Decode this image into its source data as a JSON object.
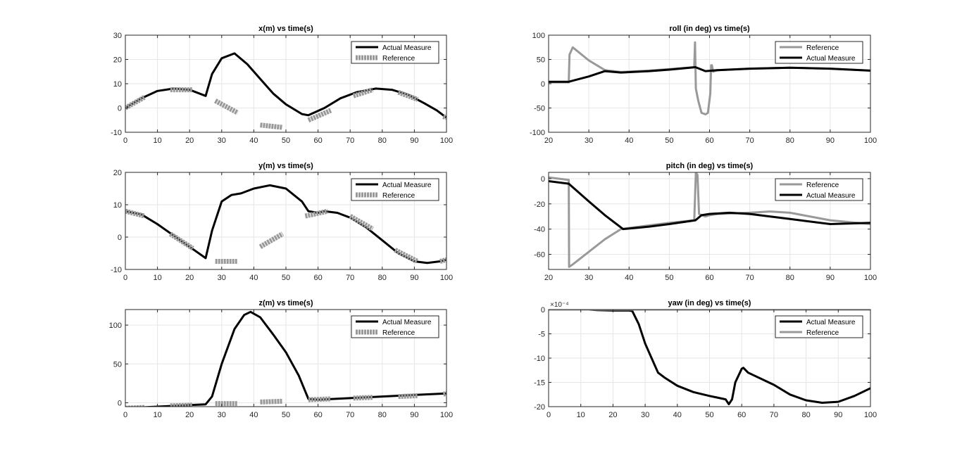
{
  "chart_data": [
    {
      "type": "line",
      "title": "x(m) vs time(s)",
      "xlim": [
        0,
        100
      ],
      "ylim": [
        -10,
        30
      ],
      "xticks": [
        0,
        10,
        20,
        30,
        40,
        50,
        60,
        70,
        80,
        90,
        100
      ],
      "yticks": [
        -10,
        0,
        10,
        20,
        30
      ],
      "grid": true,
      "legend_position": "top-right",
      "series": [
        {
          "name": "Actual Measure",
          "style": "solid-thick",
          "color": "#000000",
          "x": [
            0,
            5,
            10,
            15,
            20,
            25,
            27,
            30,
            34,
            38,
            42,
            46,
            50,
            55,
            57,
            62,
            67,
            72,
            78,
            83,
            88,
            93,
            97,
            100
          ],
          "y": [
            0,
            4,
            7,
            8,
            7.5,
            5,
            14,
            20.5,
            22.5,
            18,
            12,
            6,
            1.5,
            -2.5,
            -3,
            0,
            4,
            6.5,
            8,
            7.5,
            5.5,
            2,
            -1,
            -4
          ]
        },
        {
          "name": "Reference",
          "style": "dashed-wide",
          "color": "#999999",
          "segments": [
            {
              "x": [
                0,
                6
              ],
              "y": [
                0,
                4.5
              ]
            },
            {
              "x": [
                14,
                21
              ],
              "y": [
                7.5,
                7.5
              ]
            },
            {
              "x": [
                28,
                35
              ],
              "y": [
                3,
                -2
              ]
            },
            {
              "x": [
                42,
                49
              ],
              "y": [
                -7,
                -8
              ]
            },
            {
              "x": [
                57,
                64
              ],
              "y": [
                -5,
                -1
              ]
            },
            {
              "x": [
                71,
                77
              ],
              "y": [
                5,
                7.5
              ]
            },
            {
              "x": [
                85,
                91
              ],
              "y": [
                6.5,
                3.5
              ]
            },
            {
              "x": [
                99,
                100
              ],
              "y": [
                -3.5,
                -4
              ]
            }
          ]
        }
      ]
    },
    {
      "type": "line",
      "title": "roll (in deg) vs time(s)",
      "xlim": [
        20,
        100
      ],
      "ylim": [
        -100,
        100
      ],
      "xticks": [
        20,
        30,
        40,
        50,
        60,
        70,
        80,
        90,
        100
      ],
      "yticks": [
        -100,
        -50,
        0,
        50,
        100
      ],
      "grid": true,
      "legend_position": "top-right",
      "series": [
        {
          "name": "Reference",
          "style": "solid-thick",
          "color": "#999999",
          "x": [
            20,
            25,
            25.2,
            26,
            30,
            34,
            38,
            45,
            50,
            56.2,
            56.4,
            56.6,
            57.2,
            58,
            59,
            59.6,
            60.2,
            60.4,
            60.6,
            60.9,
            62,
            70,
            80,
            90,
            100
          ],
          "y": [
            3,
            3,
            60,
            75,
            48,
            28,
            24,
            27,
            30,
            34,
            85,
            -10,
            -35,
            -60,
            -63,
            -60,
            -20,
            38,
            38,
            25,
            28,
            31,
            33,
            31,
            27
          ]
        },
        {
          "name": "Actual Measure",
          "style": "solid-thick",
          "color": "#000000",
          "x": [
            20,
            25,
            30,
            34,
            38,
            45,
            50,
            56.5,
            59,
            62,
            70,
            80,
            90,
            100
          ],
          "y": [
            4,
            4,
            15,
            26,
            23,
            26,
            29,
            34,
            26,
            28,
            31,
            33,
            31,
            27
          ]
        }
      ]
    },
    {
      "type": "line",
      "title": "y(m) vs time(s)",
      "xlim": [
        0,
        100
      ],
      "ylim": [
        -10,
        20
      ],
      "xticks": [
        0,
        10,
        20,
        30,
        40,
        50,
        60,
        70,
        80,
        90,
        100
      ],
      "yticks": [
        -10,
        0,
        10,
        20
      ],
      "grid": true,
      "legend_position": "top-right",
      "series": [
        {
          "name": "Actual Measure",
          "style": "solid-thick",
          "color": "#000000",
          "x": [
            0,
            5,
            10,
            15,
            20,
            25,
            27,
            30,
            33,
            36,
            40,
            45,
            50,
            55,
            57,
            60,
            62,
            66,
            70,
            75,
            80,
            85,
            90,
            94,
            98,
            100
          ],
          "y": [
            8,
            7,
            4,
            0.5,
            -3,
            -6.5,
            2,
            11,
            13,
            13.5,
            15,
            16,
            15,
            11,
            8,
            7.5,
            8,
            7.5,
            6,
            3,
            -1,
            -5,
            -7.5,
            -8,
            -7.5,
            -7
          ]
        },
        {
          "name": "Reference",
          "style": "dashed-wide",
          "color": "#999999",
          "segments": [
            {
              "x": [
                0,
                6
              ],
              "y": [
                8,
                6.5
              ]
            },
            {
              "x": [
                14,
                21
              ],
              "y": [
                1,
                -3.5
              ]
            },
            {
              "x": [
                28,
                35
              ],
              "y": [
                -7.5,
                -7.5
              ]
            },
            {
              "x": [
                42,
                49
              ],
              "y": [
                -3,
                1
              ]
            },
            {
              "x": [
                56,
                63
              ],
              "y": [
                6.5,
                8
              ]
            },
            {
              "x": [
                70,
                77
              ],
              "y": [
                6.5,
                2.5
              ]
            },
            {
              "x": [
                84,
                91
              ],
              "y": [
                -4,
                -7.5
              ]
            },
            {
              "x": [
                98,
                100
              ],
              "y": [
                -7.5,
                -7
              ]
            }
          ]
        }
      ]
    },
    {
      "type": "line",
      "title": "pitch (in deg) vs time(s)",
      "xlim": [
        20,
        100
      ],
      "ylim": [
        -72,
        5
      ],
      "xticks": [
        20,
        30,
        40,
        50,
        60,
        70,
        80,
        90,
        100
      ],
      "yticks": [
        -60,
        -40,
        -20,
        0
      ],
      "grid": true,
      "legend_position": "top-right",
      "series": [
        {
          "name": "Reference",
          "style": "solid-thick",
          "color": "#999999",
          "x": [
            20,
            25,
            25.1,
            26,
            30,
            34,
            38,
            45,
            50,
            56.2,
            56.6,
            57,
            57.4,
            58,
            59,
            60,
            62,
            70,
            75,
            80,
            90,
            100
          ],
          "y": [
            1,
            -1,
            -70,
            -68,
            -58,
            -48,
            -40,
            -37,
            -35,
            -33,
            5,
            3,
            -28,
            -29,
            -30,
            -29,
            -28,
            -27,
            -26,
            -27,
            -33,
            -36
          ]
        },
        {
          "name": "Actual Measure",
          "style": "solid-thick",
          "color": "#000000",
          "x": [
            20,
            25,
            30,
            34,
            38.5,
            45,
            50,
            56.5,
            58,
            60,
            65,
            70,
            80,
            90,
            100
          ],
          "y": [
            -2,
            -4,
            -18,
            -29,
            -40,
            -38,
            -36,
            -33,
            -29,
            -28,
            -27,
            -28,
            -32,
            -36,
            -35
          ]
        }
      ]
    },
    {
      "type": "line",
      "title": "z(m) vs time(s)",
      "xlim": [
        0,
        100
      ],
      "ylim": [
        -5,
        120
      ],
      "xticks": [
        0,
        10,
        20,
        30,
        40,
        50,
        60,
        70,
        80,
        90,
        100
      ],
      "yticks": [
        0,
        50,
        100
      ],
      "grid": true,
      "legend_position": "top-right",
      "series": [
        {
          "name": "Actual Measure",
          "style": "solid-thick",
          "color": "#000000",
          "x": [
            0,
            10,
            20,
            25,
            27,
            30,
            34,
            37,
            39,
            42,
            46,
            50,
            54,
            57,
            60,
            70,
            80,
            90,
            100
          ],
          "y": [
            -7,
            -5,
            -3,
            -2,
            8,
            50,
            95,
            113,
            117,
            110,
            88,
            65,
            35,
            5,
            4,
            6,
            8,
            10,
            12
          ]
        },
        {
          "name": "Reference",
          "style": "dashed-wide",
          "color": "#999999",
          "segments": [
            {
              "x": [
                0,
                6
              ],
              "y": [
                -7,
                -6
              ]
            },
            {
              "x": [
                14,
                21
              ],
              "y": [
                -4,
                -3
              ]
            },
            {
              "x": [
                28,
                35
              ],
              "y": [
                -1,
                -1
              ]
            },
            {
              "x": [
                42,
                49
              ],
              "y": [
                1,
                2
              ]
            },
            {
              "x": [
                57,
                64
              ],
              "y": [
                4,
                5
              ]
            },
            {
              "x": [
                71,
                77
              ],
              "y": [
                6,
                7
              ]
            },
            {
              "x": [
                85,
                91
              ],
              "y": [
                8,
                9
              ]
            },
            {
              "x": [
                99,
                100
              ],
              "y": [
                11,
                12
              ]
            }
          ]
        }
      ]
    },
    {
      "type": "line",
      "title": "yaw (in deg) vs time(s)",
      "xlim": [
        0,
        100
      ],
      "ylim": [
        -20,
        0
      ],
      "exponent_label": "×10⁻⁴",
      "xticks": [
        0,
        10,
        20,
        30,
        40,
        50,
        60,
        70,
        80,
        90,
        100
      ],
      "yticks": [
        -20,
        -15,
        -10,
        -5,
        0
      ],
      "grid": true,
      "legend_position": "top-right",
      "series": [
        {
          "name": "Actual Measure",
          "style": "solid-thick",
          "color": "#000000",
          "x": [
            0,
            5,
            10,
            15,
            20,
            25,
            26,
            28,
            30,
            33,
            34,
            36,
            40,
            45,
            50,
            55,
            56,
            57,
            58,
            60,
            60.5,
            62,
            70,
            75,
            80,
            85,
            90,
            95,
            100
          ],
          "y": [
            0,
            0.1,
            0.1,
            -0.1,
            -0.2,
            -0.2,
            -0.3,
            -3,
            -7,
            -11.5,
            -13,
            -14,
            -15.7,
            -17,
            -17.8,
            -18.5,
            -19.5,
            -18.5,
            -15,
            -12.2,
            -12,
            -13,
            -15.5,
            -17.5,
            -18.7,
            -19.2,
            -19,
            -17.8,
            -16.2
          ]
        },
        {
          "name": "Reference",
          "style": "solid-thick",
          "color": "#999999",
          "x": [
            0,
            100
          ],
          "y": [
            0,
            0
          ]
        }
      ]
    }
  ]
}
